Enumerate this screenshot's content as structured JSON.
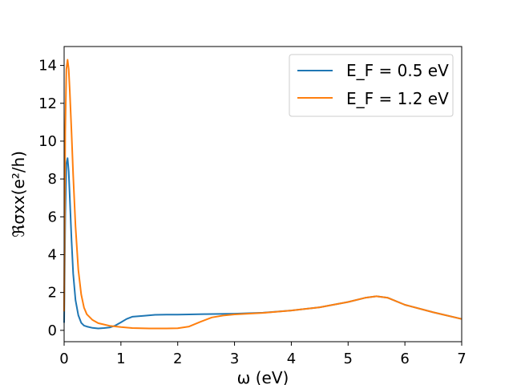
{
  "chart_data": {
    "type": "line",
    "title": "",
    "xlabel": "ω (eV)",
    "ylabel": "ℜσxx(e²/h)",
    "xlim": [
      0,
      7
    ],
    "ylim": [
      -0.6,
      15
    ],
    "xticks": [
      0,
      1,
      2,
      3,
      4,
      5,
      6,
      7
    ],
    "yticks": [
      0,
      2,
      4,
      6,
      8,
      10,
      12,
      14
    ],
    "grid": false,
    "legend_position": "top-right",
    "series": [
      {
        "name": "E_F = 0.5 eV",
        "color": "#1f77b4",
        "x": [
          0,
          0.02,
          0.04,
          0.06,
          0.08,
          0.1,
          0.13,
          0.16,
          0.2,
          0.25,
          0.3,
          0.35,
          0.4,
          0.5,
          0.6,
          0.7,
          0.8,
          0.9,
          1.0,
          1.1,
          1.2,
          1.4,
          1.6,
          1.8,
          2.0,
          2.2,
          2.5,
          3.0,
          3.5,
          4.0,
          4.5,
          5.0,
          5.3,
          5.5,
          5.7,
          6.0,
          6.5,
          7.0
        ],
        "y": [
          0.4,
          6.0,
          8.8,
          9.1,
          8.4,
          7.0,
          4.8,
          3.0,
          1.6,
          0.8,
          0.4,
          0.25,
          0.2,
          0.13,
          0.1,
          0.12,
          0.15,
          0.25,
          0.42,
          0.6,
          0.72,
          0.77,
          0.82,
          0.83,
          0.83,
          0.84,
          0.86,
          0.88,
          0.93,
          1.05,
          1.22,
          1.5,
          1.72,
          1.8,
          1.72,
          1.35,
          0.95,
          0.6
        ]
      },
      {
        "name": "E_F = 1.2 eV",
        "color": "#ff7f0e",
        "x": [
          0,
          0.02,
          0.04,
          0.06,
          0.08,
          0.1,
          0.13,
          0.16,
          0.2,
          0.25,
          0.3,
          0.35,
          0.4,
          0.5,
          0.6,
          0.8,
          1.0,
          1.2,
          1.5,
          1.8,
          2.0,
          2.2,
          2.4,
          2.6,
          2.8,
          3.0,
          3.5,
          4.0,
          4.5,
          5.0,
          5.3,
          5.5,
          5.7,
          6.0,
          6.5,
          7.0
        ],
        "y": [
          1.0,
          10.5,
          13.8,
          14.3,
          13.8,
          12.6,
          10.5,
          8.2,
          5.5,
          3.2,
          1.9,
          1.2,
          0.85,
          0.55,
          0.38,
          0.24,
          0.17,
          0.12,
          0.1,
          0.1,
          0.11,
          0.2,
          0.45,
          0.68,
          0.78,
          0.84,
          0.92,
          1.05,
          1.22,
          1.5,
          1.72,
          1.8,
          1.72,
          1.35,
          0.95,
          0.6
        ]
      }
    ]
  }
}
